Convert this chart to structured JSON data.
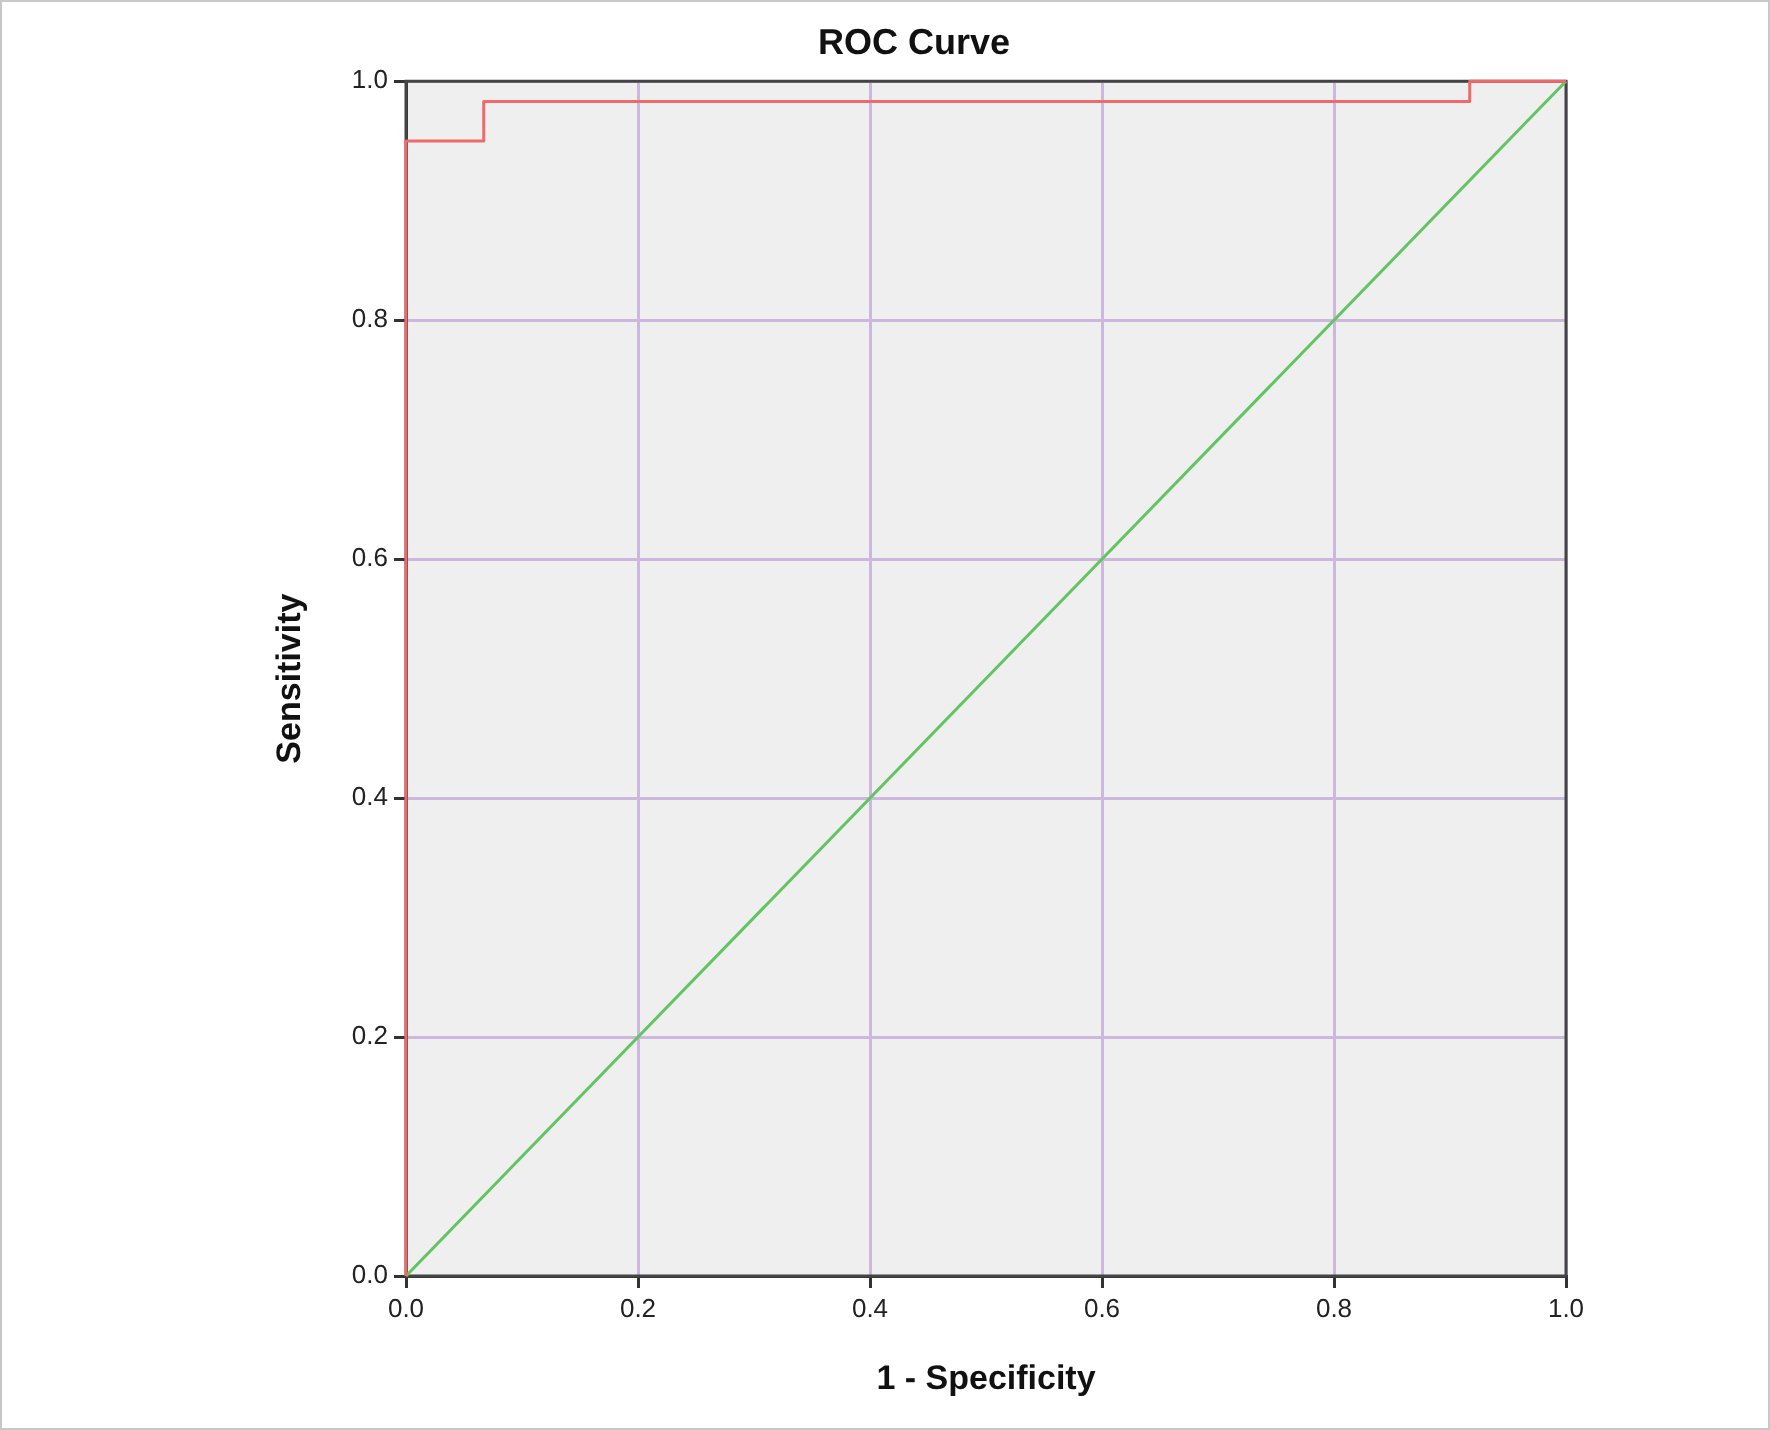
{
  "chart_data": {
    "type": "step",
    "title": "ROC Curve",
    "xlabel": "1 - Specificity",
    "ylabel": "Sensitivity",
    "series": [
      {
        "color": "#f06a6a",
        "x": [
          0,
          0,
          0.067,
          0.917,
          1
        ],
        "values": [
          0,
          0.95,
          0.983,
          1,
          1
        ]
      },
      {
        "type": "line",
        "color": "#62c462",
        "x": [
          0,
          1
        ],
        "values": [
          0,
          1
        ]
      }
    ],
    "xlim": [
      0,
      1
    ],
    "ylim": [
      0,
      1
    ],
    "xticks": [
      {
        "value": 0,
        "label": "0.0"
      },
      {
        "value": 0.2,
        "label": "0.2"
      },
      {
        "value": 0.4,
        "label": "0.4"
      },
      {
        "value": 0.6,
        "label": "0.6"
      },
      {
        "value": 0.8,
        "label": "0.8"
      },
      {
        "value": 1,
        "label": "1.0"
      }
    ],
    "yticks": [
      {
        "value": 0,
        "label": "0.0"
      },
      {
        "value": 0.2,
        "label": "0.2"
      },
      {
        "value": 0.4,
        "label": "0.4"
      },
      {
        "value": 0.6,
        "label": "0.6"
      },
      {
        "value": 0.8,
        "label": "0.8"
      },
      {
        "value": 1,
        "label": "1.0"
      }
    ],
    "grid": true,
    "legend": false,
    "marker": "none"
  }
}
